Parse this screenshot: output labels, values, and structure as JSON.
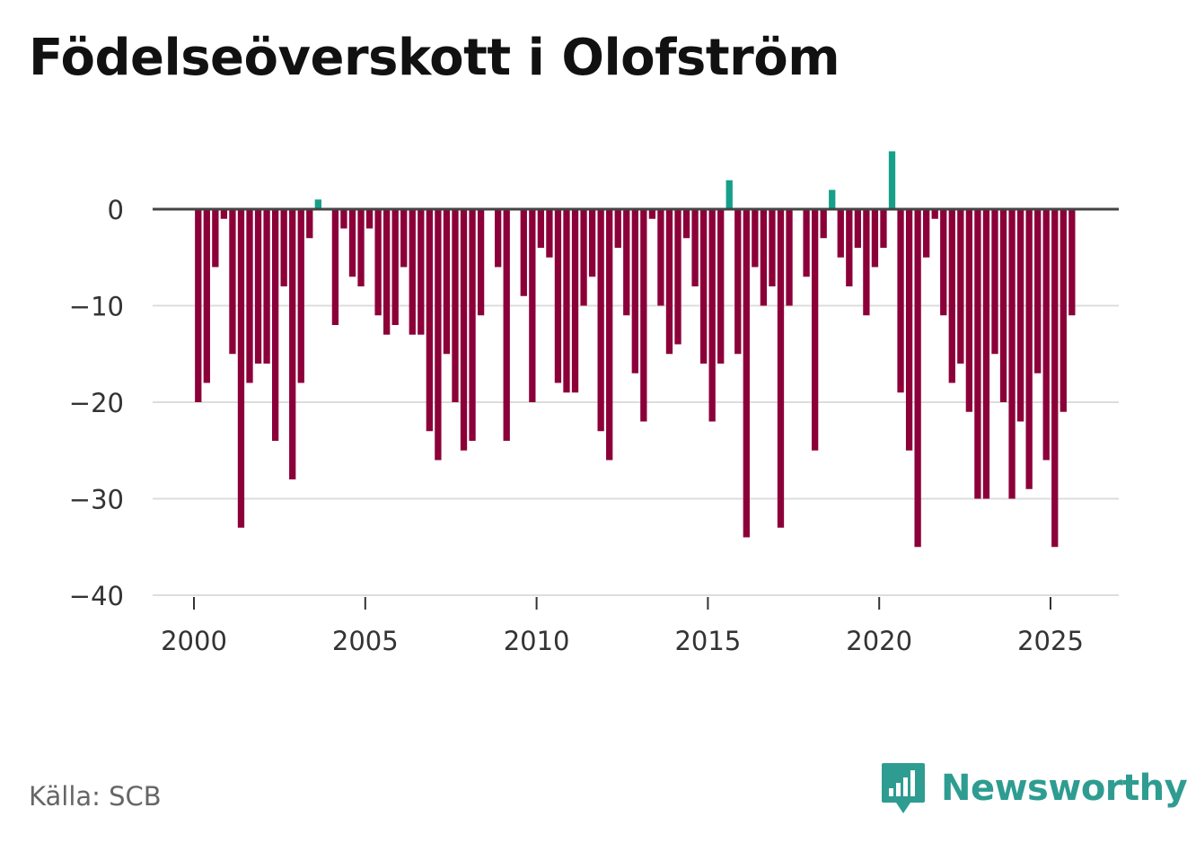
{
  "page": {
    "title": "Födelseöverskott i Olofström"
  },
  "footer": {
    "source": "Källa: SCB",
    "brand": "Newsworthy"
  },
  "colors": {
    "negative": "#8c0039",
    "positive": "#16a08a",
    "zero_line": "#444444",
    "grid": "#dddddd"
  },
  "chart_data": {
    "type": "bar",
    "title": "Födelseöverskott i Olofström",
    "xlabel": "",
    "ylabel": "",
    "ylim": [
      -40,
      6
    ],
    "xlim": [
      1999.6,
      2027.2
    ],
    "yticks": [
      0,
      -10,
      -20,
      -30,
      -40
    ],
    "ytick_labels": [
      "0",
      "−10",
      "−20",
      "−30",
      "−40"
    ],
    "xticks": [
      2000,
      2005,
      2010,
      2015,
      2020,
      2025
    ],
    "xtick_labels": [
      "2000",
      "2005",
      "2010",
      "2015",
      "2020",
      "2025"
    ],
    "period": "quarterly",
    "start": 2000.0,
    "values": [
      -20,
      -18,
      -6,
      -1,
      -15,
      -33,
      -18,
      -16,
      -16,
      -24,
      -8,
      -28,
      -18,
      -3,
      1,
      0,
      -12,
      -2,
      -7,
      -8,
      -2,
      -11,
      -13,
      -12,
      -6,
      -13,
      -13,
      -23,
      -26,
      -15,
      -20,
      -25,
      -24,
      -11,
      0,
      -6,
      -24,
      0,
      -9,
      -20,
      -4,
      -5,
      -18,
      -19,
      -19,
      -10,
      -7,
      -23,
      -26,
      -4,
      -11,
      -17,
      -22,
      -1,
      -10,
      -15,
      -14,
      -3,
      -8,
      -16,
      -22,
      -16,
      3,
      -15,
      -34,
      -6,
      -10,
      -8,
      -33,
      -10,
      0,
      -7,
      -25,
      -3,
      2,
      -5,
      -8,
      -4,
      -11,
      -6,
      -4,
      6,
      -19,
      -25,
      -35,
      -5,
      -1,
      -11,
      -18,
      -16,
      -21,
      -30,
      -30,
      -15,
      -20,
      -30,
      -22,
      -29,
      -17,
      -26,
      -35,
      -21,
      -11
    ]
  }
}
